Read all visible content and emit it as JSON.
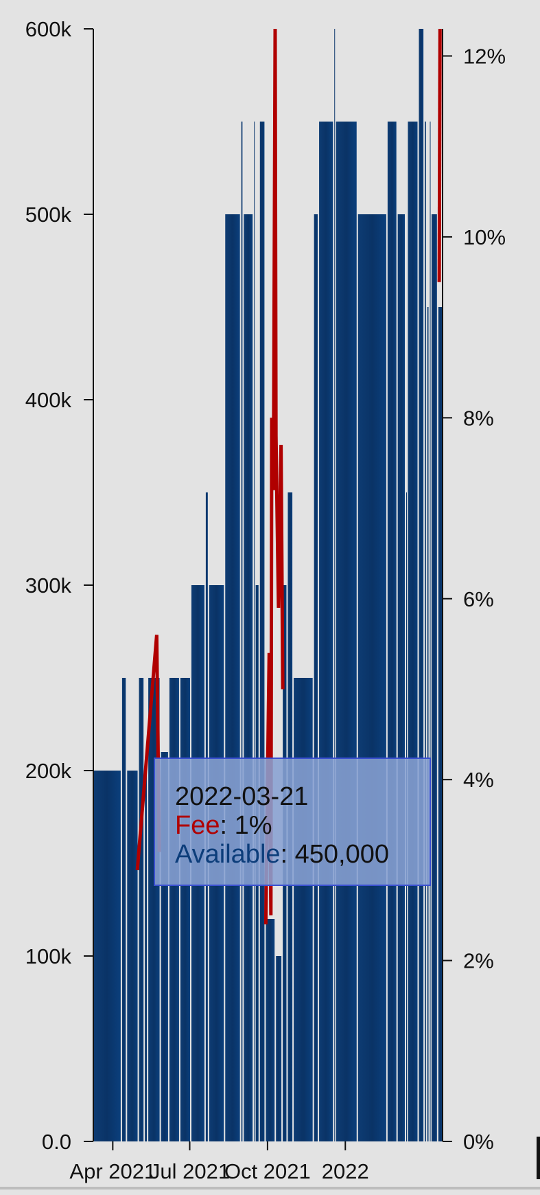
{
  "chart_data": {
    "type": "bar",
    "series": [
      {
        "name": "Available",
        "color": "#0c3d7a",
        "kind": "bar",
        "axis": "left",
        "points": [
          [
            "2021-03-09",
            200000
          ],
          [
            "2021-04-12",
            250000
          ],
          [
            "2021-04-18",
            200000
          ],
          [
            "2021-05-02",
            250000
          ],
          [
            "2021-05-09",
            200000
          ],
          [
            "2021-05-13",
            250000
          ],
          [
            "2021-05-28",
            210000
          ],
          [
            "2021-06-07",
            250000
          ],
          [
            "2021-06-20",
            250000
          ],
          [
            "2021-07-03",
            300000
          ],
          [
            "2021-07-20",
            350000
          ],
          [
            "2021-07-24",
            300000
          ],
          [
            "2021-08-12",
            500000
          ],
          [
            "2021-08-31",
            550000
          ],
          [
            "2021-09-03",
            500000
          ],
          [
            "2021-09-15",
            550000
          ],
          [
            "2021-09-17",
            300000
          ],
          [
            "2021-09-22",
            550000
          ],
          [
            "2021-09-29",
            120000
          ],
          [
            "2021-10-11",
            100000
          ],
          [
            "2021-10-19",
            300000
          ],
          [
            "2021-10-25",
            350000
          ],
          [
            "2021-11-01",
            250000
          ],
          [
            "2021-11-25",
            500000
          ],
          [
            "2021-12-01",
            550000
          ],
          [
            "2021-12-19",
            600000
          ],
          [
            "2021-12-21",
            550000
          ],
          [
            "2022-01-16",
            500000
          ],
          [
            "2022-02-20",
            550000
          ],
          [
            "2022-03-04",
            500000
          ],
          [
            "2022-03-14",
            350000
          ],
          [
            "2022-03-16",
            550000
          ],
          [
            "2022-03-29",
            600000
          ],
          [
            "2022-04-05",
            550000
          ],
          [
            "2022-04-08",
            450000
          ],
          [
            "2022-04-11",
            550000
          ],
          [
            "2022-04-13",
            500000
          ],
          [
            "2022-04-21",
            450000
          ]
        ]
      },
      {
        "name": "Fee",
        "color": "#b00000",
        "kind": "line",
        "axis": "right",
        "points": [
          [
            "2021-04-30",
            3.0
          ],
          [
            "2021-05-23",
            5.6
          ],
          [
            "2021-05-26",
            3.2
          ],
          [
            "2021-09-29",
            2.4
          ],
          [
            "2021-10-01",
            4.0
          ],
          [
            "2021-10-03",
            5.4
          ],
          [
            "2021-10-05",
            2.5
          ],
          [
            "2021-10-06",
            8.0
          ],
          [
            "2021-10-08",
            7.2
          ],
          [
            "2021-10-10",
            12.5
          ],
          [
            "2021-10-11",
            7.8
          ],
          [
            "2021-10-13",
            6.5
          ],
          [
            "2021-10-14",
            5.9
          ],
          [
            "2021-10-17",
            7.7
          ],
          [
            "2021-10-19",
            5.0
          ],
          [
            "2022-04-22",
            9.5
          ],
          [
            "2022-04-23",
            12.5
          ]
        ]
      }
    ],
    "x_ticks": [
      "Apr 2021",
      "Jul 2021",
      "Oct 2021",
      "2022"
    ],
    "y_left_ticks": [
      "0.0",
      "100k",
      "200k",
      "300k",
      "400k",
      "500k",
      "600k"
    ],
    "y_right_ticks": [
      "0%",
      "2%",
      "4%",
      "6%",
      "8%",
      "10%",
      "12%"
    ],
    "ylim_left": [
      0,
      600000
    ],
    "ylim_right": [
      0,
      12.3
    ],
    "xlim": [
      "2021-03-09",
      "2022-04-26"
    ],
    "grid": false,
    "legend": "none"
  },
  "tooltip": {
    "date": "2022-03-21",
    "fee_label": "Fee",
    "fee_value": ": 1%",
    "available_label": "Available",
    "available_value": ": 450,000"
  }
}
